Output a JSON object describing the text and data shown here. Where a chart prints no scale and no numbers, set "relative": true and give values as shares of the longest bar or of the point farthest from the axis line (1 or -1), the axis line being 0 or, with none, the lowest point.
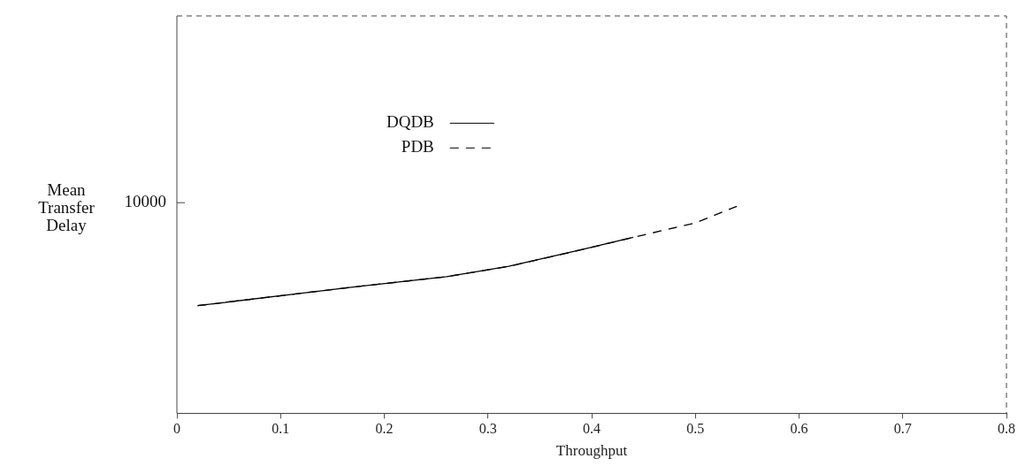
{
  "chart_data": {
    "type": "line",
    "xlabel": "Throughput",
    "ylabel": "Mean Transfer Delay",
    "relative": true,
    "annotations": [
      "10000"
    ],
    "xlim": [
      0,
      0.8
    ],
    "xticks": [
      0,
      0.1,
      0.2,
      0.3,
      0.4,
      0.5,
      0.6,
      0.7,
      0.8
    ],
    "grid": false,
    "legend": "top left",
    "marker": "none",
    "series": [
      {
        "name": "DQDB",
        "color": "#000000",
        "line_style": "solid",
        "x": [
          0.02,
          0.12,
          0.17,
          0.26,
          0.32,
          0.39,
          0.44
        ],
        "values": [
          0.52,
          0.58,
          0.61,
          0.66,
          0.71,
          0.79,
          0.85
        ]
      },
      {
        "name": "PDB",
        "color": "#000000",
        "line_style": "dashed",
        "x": [
          0.02,
          0.12,
          0.17,
          0.26,
          0.32,
          0.39,
          0.44,
          0.5,
          0.54
        ],
        "values": [
          0.52,
          0.58,
          0.61,
          0.66,
          0.71,
          0.79,
          0.85,
          0.92,
          1
        ]
      }
    ]
  }
}
